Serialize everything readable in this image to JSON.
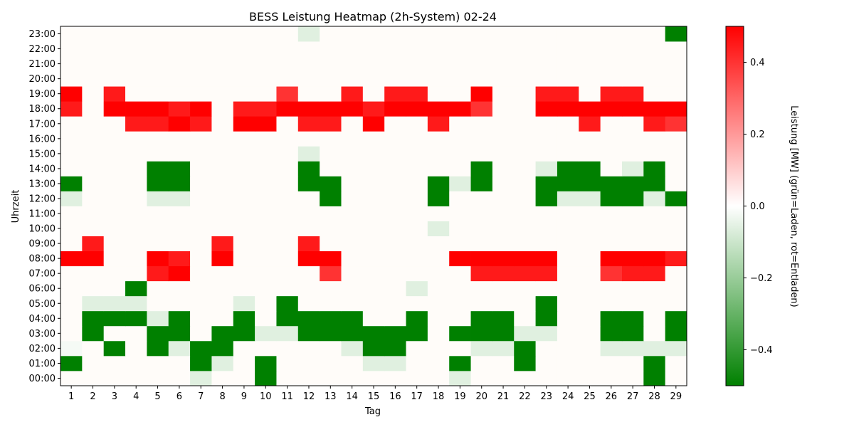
{
  "chart_data": {
    "type": "heatmap",
    "title": "BESS Leistung Heatmap (2h-System) 02-24",
    "xlabel": "Tag",
    "ylabel": "Uhrzeit",
    "colorbar_label": "Leistung [MW] (grün=Laden, rot=Entladen)",
    "colorbar_ticks": [
      "0.4",
      "0.2",
      "0.0",
      "−0.2",
      "−0.4"
    ],
    "colorbar_tick_values": [
      0.4,
      0.2,
      0.0,
      -0.2,
      -0.4
    ],
    "vmin": -0.5,
    "vmax": 0.5,
    "colors": {
      "negative": "#008000",
      "zero": "#ffffff",
      "positive": "#ff0000",
      "background": "#fffcf9"
    },
    "x": [
      "1",
      "2",
      "3",
      "4",
      "5",
      "6",
      "7",
      "8",
      "9",
      "10",
      "11",
      "12",
      "13",
      "14",
      "15",
      "16",
      "17",
      "18",
      "19",
      "20",
      "21",
      "22",
      "23",
      "24",
      "25",
      "26",
      "27",
      "28",
      "29"
    ],
    "y": [
      "00:00",
      "01:00",
      "02:00",
      "03:00",
      "04:00",
      "05:00",
      "06:00",
      "07:00",
      "08:00",
      "09:00",
      "10:00",
      "11:00",
      "12:00",
      "13:00",
      "14:00",
      "15:00",
      "16:00",
      "17:00",
      "18:00",
      "19:00",
      "20:00",
      "21:00",
      "22:00",
      "23:00"
    ],
    "values": [
      [
        0,
        0,
        0,
        0,
        0,
        0,
        -0.06,
        0,
        0,
        -0.5,
        0,
        0,
        0,
        0,
        0,
        0,
        0,
        0,
        -0.06,
        0,
        0,
        0,
        0,
        0,
        0,
        0,
        0,
        -0.5,
        0
      ],
      [
        -0.5,
        0,
        0,
        0,
        0,
        0,
        -0.5,
        -0.06,
        0,
        -0.5,
        0,
        0,
        0,
        0,
        -0.06,
        -0.06,
        0,
        0,
        -0.5,
        0,
        0,
        -0.5,
        0,
        0,
        0,
        0,
        0,
        -0.5,
        0
      ],
      [
        -0.02,
        0,
        -0.5,
        0,
        -0.5,
        -0.06,
        -0.5,
        -0.5,
        0,
        0,
        0,
        0,
        0,
        -0.06,
        -0.5,
        -0.5,
        0,
        0,
        0,
        -0.06,
        -0.06,
        -0.5,
        0,
        0,
        0,
        -0.06,
        -0.06,
        -0.06,
        -0.06
      ],
      [
        0,
        -0.5,
        0,
        0,
        -0.5,
        -0.5,
        0,
        -0.5,
        -0.5,
        -0.06,
        -0.06,
        -0.5,
        -0.5,
        -0.5,
        -0.5,
        -0.5,
        -0.5,
        0,
        -0.5,
        -0.5,
        -0.5,
        -0.06,
        -0.06,
        0,
        0,
        -0.5,
        -0.5,
        0,
        -0.5
      ],
      [
        0,
        -0.5,
        -0.5,
        -0.5,
        -0.06,
        -0.5,
        0,
        0,
        -0.5,
        0,
        -0.5,
        -0.5,
        -0.5,
        -0.5,
        0,
        0,
        -0.5,
        0,
        0,
        -0.5,
        -0.5,
        0,
        -0.5,
        0,
        0,
        -0.5,
        -0.5,
        0,
        -0.5
      ],
      [
        0,
        -0.06,
        -0.06,
        -0.06,
        0,
        0,
        0,
        0,
        -0.06,
        0,
        -0.5,
        0,
        0,
        0,
        0,
        0,
        0,
        0,
        0,
        0,
        0,
        0,
        -0.5,
        0,
        0,
        0,
        0,
        0,
        0
      ],
      [
        0,
        0,
        0,
        -0.5,
        0,
        0,
        0,
        0,
        0,
        0,
        0,
        0,
        0,
        0,
        0,
        0,
        -0.06,
        0,
        0,
        0,
        0,
        0,
        0,
        0,
        0,
        0,
        0,
        0,
        0
      ],
      [
        0,
        0,
        0,
        0,
        0.45,
        0.5,
        0,
        0,
        0,
        0,
        0,
        0,
        0.4,
        0,
        0,
        0,
        0,
        0,
        0,
        0.45,
        0.45,
        0.45,
        0.45,
        0,
        0,
        0.4,
        0.45,
        0.45,
        0
      ],
      [
        0.5,
        0.5,
        0,
        0,
        0.5,
        0.45,
        0,
        0.5,
        0,
        0,
        0,
        0.5,
        0.5,
        0,
        0,
        0,
        0,
        0,
        0.5,
        0.5,
        0.5,
        0.5,
        0.5,
        0,
        0,
        0.5,
        0.5,
        0.5,
        0.45
      ],
      [
        0,
        0.45,
        0,
        0,
        0,
        0,
        0,
        0.45,
        0,
        0,
        0,
        0.45,
        0,
        0,
        0,
        0,
        0,
        0,
        0,
        0,
        0,
        0,
        0,
        0,
        0,
        0,
        0,
        0,
        0
      ],
      [
        0,
        0,
        0,
        0,
        0,
        0,
        0,
        0,
        0,
        0,
        0,
        0,
        0,
        0,
        0,
        0,
        0,
        -0.06,
        0,
        0,
        0,
        0,
        0,
        0,
        0,
        0,
        0,
        0,
        0
      ],
      [
        0,
        0,
        0,
        0,
        0,
        0,
        0,
        0,
        0,
        0,
        0,
        0,
        0,
        0,
        0,
        0,
        0,
        0,
        0,
        0,
        0,
        0,
        0,
        0,
        0,
        0,
        0,
        0,
        0
      ],
      [
        -0.06,
        0,
        0,
        0,
        -0.06,
        -0.06,
        0,
        0,
        0,
        0,
        0,
        0,
        -0.5,
        0,
        0,
        0,
        0,
        -0.5,
        0,
        0,
        0,
        0,
        -0.5,
        -0.06,
        -0.06,
        -0.5,
        -0.5,
        -0.06,
        -0.5
      ],
      [
        -0.5,
        0,
        0,
        0,
        -0.5,
        -0.5,
        0,
        0,
        0,
        0,
        0,
        -0.5,
        -0.5,
        0,
        0,
        0,
        0,
        -0.5,
        -0.06,
        -0.5,
        0,
        0,
        -0.5,
        -0.5,
        -0.5,
        -0.5,
        -0.5,
        -0.5,
        0
      ],
      [
        0,
        0,
        0,
        0,
        -0.5,
        -0.5,
        0,
        0,
        0,
        0,
        0,
        -0.5,
        0,
        0,
        0,
        0,
        0,
        0,
        0,
        -0.5,
        0,
        0,
        -0.06,
        -0.5,
        -0.5,
        0,
        -0.06,
        -0.5,
        0
      ],
      [
        0,
        0,
        0,
        0,
        0,
        0,
        0,
        0,
        0,
        0,
        0,
        -0.06,
        0,
        0,
        0,
        0,
        0,
        0,
        0,
        0,
        0,
        0,
        0,
        0,
        0,
        0,
        0,
        0,
        0
      ],
      [
        0,
        0,
        0,
        0,
        0,
        0,
        0,
        0,
        0,
        0,
        0,
        0,
        0,
        0,
        0,
        0,
        0,
        0,
        0,
        0,
        0,
        0,
        0,
        0,
        0,
        0,
        0,
        0,
        0
      ],
      [
        0,
        0,
        0,
        0.45,
        0.45,
        0.5,
        0.45,
        0,
        0.5,
        0.5,
        0,
        0.45,
        0.45,
        0,
        0.5,
        0,
        0,
        0.45,
        0,
        0,
        0,
        0,
        0,
        0,
        0.45,
        0,
        0,
        0.45,
        0.4
      ],
      [
        0.45,
        0,
        0.5,
        0.5,
        0.5,
        0.45,
        0.5,
        0,
        0.45,
        0.45,
        0.5,
        0.5,
        0.5,
        0.5,
        0.45,
        0.5,
        0.5,
        0.5,
        0.5,
        0.4,
        0,
        0,
        0.5,
        0.5,
        0.5,
        0.5,
        0.5,
        0.5,
        0.5
      ],
      [
        0.5,
        0,
        0.45,
        0,
        0,
        0,
        0,
        0,
        0,
        0,
        0.4,
        0,
        0,
        0.45,
        0,
        0.45,
        0.45,
        0,
        0,
        0.5,
        0,
        0,
        0.45,
        0.45,
        0,
        0.45,
        0.45,
        0,
        0
      ],
      [
        0,
        0,
        0,
        0,
        0,
        0,
        0,
        0,
        0,
        0,
        0,
        0,
        0,
        0,
        0,
        0,
        0,
        0,
        0,
        0,
        0,
        0,
        0,
        0,
        0,
        0,
        0,
        0,
        0
      ],
      [
        0,
        0,
        0,
        0,
        0,
        0,
        0,
        0,
        0,
        0,
        0,
        0,
        0,
        0,
        0,
        0,
        0,
        0,
        0,
        0,
        0,
        0,
        0,
        0,
        0,
        0,
        0,
        0,
        0
      ],
      [
        0,
        0,
        0,
        0,
        0,
        0,
        0,
        0,
        0,
        0,
        0,
        0,
        0,
        0,
        0,
        0,
        0,
        0,
        0,
        0,
        0,
        0,
        0,
        0,
        0,
        0,
        0,
        0,
        0
      ],
      [
        0,
        0,
        0,
        0,
        0,
        0,
        0,
        0,
        0,
        0,
        0,
        -0.06,
        0,
        0,
        0,
        0,
        0,
        0,
        0,
        0,
        0,
        0,
        0,
        0,
        0,
        0,
        0,
        0,
        -0.5
      ]
    ]
  }
}
